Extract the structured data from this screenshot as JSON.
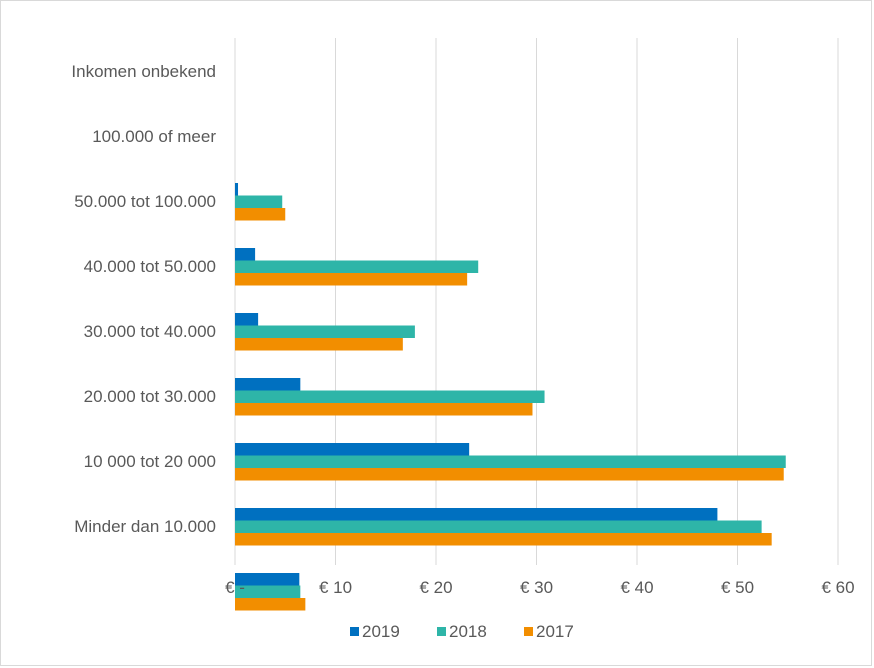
{
  "chart_data": {
    "type": "bar",
    "orientation": "horizontal",
    "categories": [
      "Inkomen onbekend",
      "100.000 of meer",
      "50.000 tot 100.000",
      "40.000 tot 50.000",
      "30.000 tot 40.000",
      "20.000 tot 30.000",
      "10 000 tot 20 000",
      "Minder dan 10.000"
    ],
    "series": [
      {
        "name": "2019",
        "color": "#0070c0",
        "values": [
          0,
          0.3,
          2.0,
          2.3,
          6.5,
          23.3,
          48.0,
          6.4
        ]
      },
      {
        "name": "2018",
        "color": "#2eb5a8",
        "values": [
          0,
          4.7,
          24.2,
          17.9,
          30.8,
          54.8,
          52.4,
          6.5
        ]
      },
      {
        "name": "2017",
        "color": "#f28e00",
        "values": [
          0,
          5.0,
          23.1,
          16.7,
          29.6,
          54.6,
          53.4,
          7.0
        ]
      }
    ],
    "xlim": [
      0,
      60
    ],
    "xticks": [
      0,
      10,
      20,
      30,
      40,
      50,
      60
    ],
    "xtick_labels": [
      "€ -",
      "€ 10",
      "€ 20",
      "€ 30",
      "€ 40",
      "€ 50",
      "€ 60"
    ],
    "grid": true,
    "legend_position": "bottom",
    "title": "",
    "xlabel": "",
    "ylabel": ""
  }
}
